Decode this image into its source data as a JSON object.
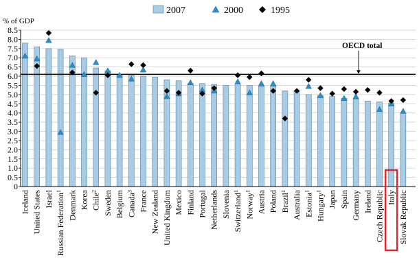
{
  "chart_data": {
    "type": "bar",
    "ylabel": "% of GDP",
    "ylim": [
      0,
      8.5
    ],
    "yticks": [
      "0",
      "0.5",
      "1.0",
      "1.5",
      "2.0",
      "2.5",
      "3.0",
      "3.5",
      "4.0",
      "4.5",
      "5.0",
      "5.5",
      "6.0",
      "6.5",
      "7.0",
      "7.5",
      "8.0",
      "8.5"
    ],
    "grid": true,
    "legend_position": "top-center",
    "legend": [
      {
        "name": "2007",
        "marker": "bar"
      },
      {
        "name": "2000",
        "marker": "triangle"
      },
      {
        "name": "1995",
        "marker": "diamond"
      }
    ],
    "reference_line": {
      "label": "OECD total",
      "value": 6.1
    },
    "highlight_category": "Italy",
    "colors": {
      "bar_fill": "#a8cce6",
      "bar_stroke": "#5b7f97",
      "triangle": "#2a8fc6",
      "diamond": "#000000",
      "highlight": "#e0262b",
      "grid": "#c8c8c8"
    },
    "categories": [
      {
        "label": "Iceland",
        "sup": ""
      },
      {
        "label": "United States",
        "sup": ""
      },
      {
        "label": "Israel",
        "sup": ""
      },
      {
        "label": "Russian Federation",
        "sup": "1"
      },
      {
        "label": "Denmark",
        "sup": ""
      },
      {
        "label": "Korea",
        "sup": ""
      },
      {
        "label": "Chile",
        "sup": "2"
      },
      {
        "label": "Sweden",
        "sup": ""
      },
      {
        "label": "Belgium",
        "sup": ""
      },
      {
        "label": "Canada",
        "sup": "3"
      },
      {
        "label": "France",
        "sup": ""
      },
      {
        "label": "New Zealand",
        "sup": ""
      },
      {
        "label": "United Kingdom",
        "sup": ""
      },
      {
        "label": "Mexico",
        "sup": ""
      },
      {
        "label": "Finland",
        "sup": ""
      },
      {
        "label": "Portugal",
        "sup": ""
      },
      {
        "label": "Netherlands",
        "sup": ""
      },
      {
        "label": "Slovenia",
        "sup": ""
      },
      {
        "label": "Switzerland",
        "sup": "1"
      },
      {
        "label": "Norway",
        "sup": "1"
      },
      {
        "label": "Austria",
        "sup": ""
      },
      {
        "label": "Poland",
        "sup": ""
      },
      {
        "label": "Brazil",
        "sup": "1"
      },
      {
        "label": "Australia",
        "sup": ""
      },
      {
        "label": "Estonia",
        "sup": "1"
      },
      {
        "label": "Hungary",
        "sup": "1"
      },
      {
        "label": "Japan",
        "sup": ""
      },
      {
        "label": "Spain",
        "sup": ""
      },
      {
        "label": "Germany",
        "sup": ""
      },
      {
        "label": "Ireland",
        "sup": ""
      },
      {
        "label": "Czech Republic",
        "sup": ""
      },
      {
        "label": "Italy",
        "sup": ""
      },
      {
        "label": "Slovak Republic",
        "sup": ""
      }
    ],
    "series": [
      {
        "name": "2007",
        "marker": "bar",
        "values": [
          7.8,
          7.6,
          7.5,
          7.45,
          7.1,
          7.0,
          6.45,
          6.3,
          6.1,
          6.05,
          6.0,
          5.95,
          5.8,
          5.75,
          5.6,
          5.6,
          5.55,
          5.5,
          5.6,
          5.5,
          5.45,
          5.45,
          5.2,
          5.2,
          5.0,
          4.95,
          4.9,
          4.8,
          4.75,
          4.65,
          4.6,
          4.55,
          4.0
        ]
      },
      {
        "name": "2000",
        "marker": "triangle",
        "values": [
          7.1,
          6.95,
          7.95,
          2.95,
          6.6,
          6.1,
          6.75,
          6.3,
          6.05,
          5.85,
          6.35,
          null,
          4.9,
          5.05,
          5.65,
          5.25,
          5.2,
          null,
          5.7,
          5.1,
          5.6,
          5.6,
          null,
          null,
          5.45,
          4.95,
          null,
          4.8,
          4.9,
          null,
          4.2,
          4.5,
          4.1
        ]
      },
      {
        "name": "1995",
        "marker": "diamond",
        "values": [
          null,
          6.55,
          8.35,
          null,
          6.2,
          null,
          5.1,
          6.05,
          null,
          6.65,
          6.6,
          null,
          5.2,
          5.1,
          6.3,
          5.05,
          5.35,
          null,
          6.05,
          5.95,
          6.15,
          5.2,
          3.7,
          5.2,
          5.8,
          5.35,
          5.05,
          5.3,
          5.15,
          5.25,
          5.1,
          4.65,
          4.7
        ]
      }
    ]
  }
}
